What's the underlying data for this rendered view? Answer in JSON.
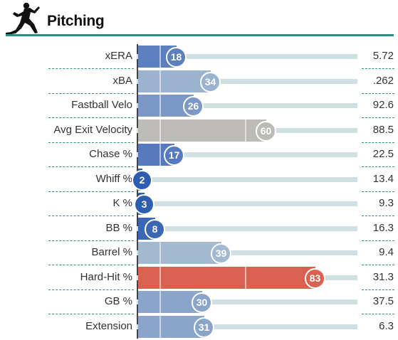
{
  "header": {
    "title": "Pitching",
    "icon": "pitcher-silhouette-icon",
    "rule_color": "#2e8c83"
  },
  "colors": {
    "scale_low": "#2e5fad",
    "scale_mid_low": "#9bb3cf",
    "scale_mid": "#bdbdbd",
    "scale_high": "#d9614f",
    "track": "#cfe0e2",
    "separator": "#2e8c83"
  },
  "chart_data": {
    "type": "bar",
    "orientation": "horizontal",
    "xlim": [
      0,
      100
    ],
    "categories": [
      "xERA",
      "xBA",
      "Fastball Velo",
      "Avg Exit Velocity",
      "Chase %",
      "Whiff %",
      "K %",
      "BB %",
      "Barrel %",
      "Hard-Hit %",
      "GB %",
      "Extension"
    ],
    "percentiles": [
      18,
      34,
      26,
      60,
      17,
      2,
      3,
      8,
      39,
      83,
      30,
      31
    ],
    "values": [
      "5.72",
      ".262",
      "92.6",
      "88.5",
      "22.5",
      "13.4",
      "9.3",
      "16.3",
      "9.4",
      "31.3",
      "37.5",
      "6.3"
    ],
    "bar_colors": [
      "#5c7fc0",
      "#9bb3cf",
      "#7b98c7",
      "#bdbbb8",
      "#5779bd",
      "#2e5cb0",
      "#2f5db0",
      "#3a66b4",
      "#a3b9cf",
      "#d9614f",
      "#8aa4ca",
      "#8aa4ca"
    ],
    "legend": "none",
    "grid": false
  }
}
